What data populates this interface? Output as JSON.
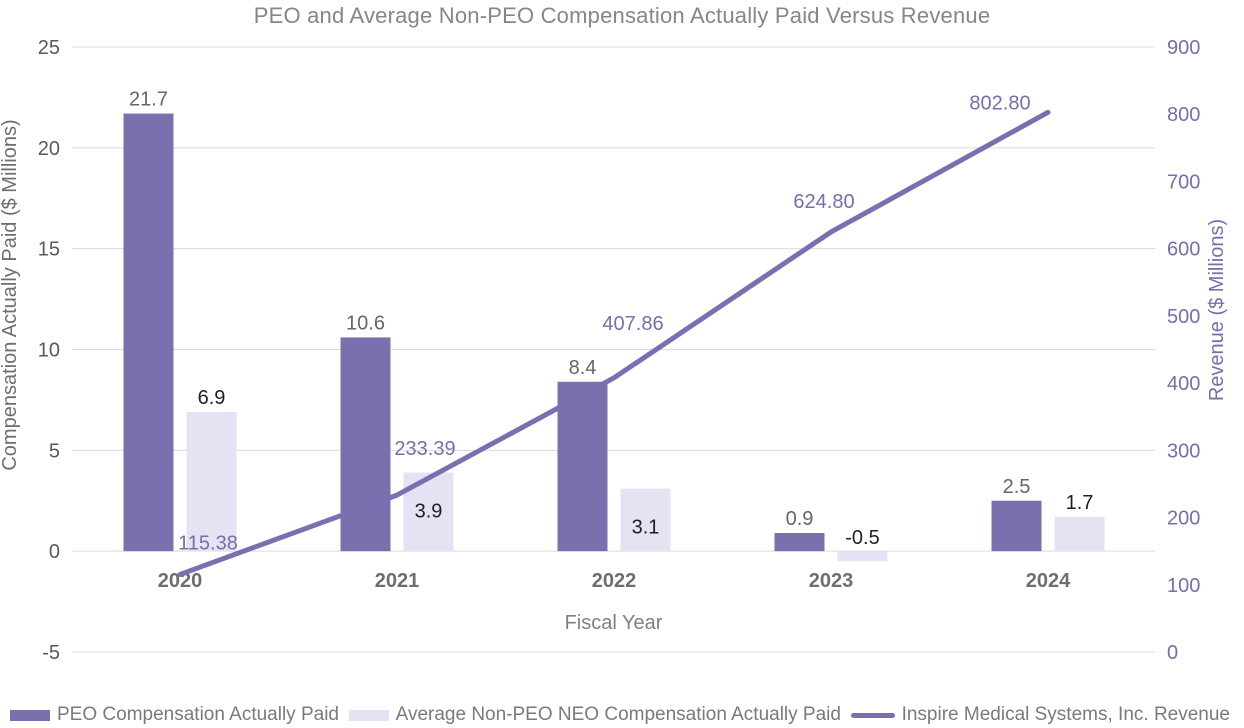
{
  "chart_data": {
    "type": "combo-bar-line",
    "title": "PEO and Average Non-PEO Compensation Actually Paid Versus Revenue",
    "xlabel": "Fiscal Year",
    "categories": [
      "2020",
      "2021",
      "2022",
      "2023",
      "2024"
    ],
    "series": [
      {
        "name": "PEO Compensation Actually Paid",
        "type": "bar",
        "axis": "left",
        "color": "#7a70ae",
        "label_color": "#666666",
        "values": [
          21.7,
          10.6,
          8.4,
          0.9,
          2.5
        ],
        "labels": [
          "21.7",
          "10.6",
          "8.4",
          "0.9",
          "2.5"
        ]
      },
      {
        "name": "Average Non-PEO NEO Compensation Actually Paid",
        "type": "bar",
        "axis": "left",
        "color": "#e4e2f3",
        "label_color": "#1f1f1f",
        "values": [
          6.9,
          3.9,
          3.1,
          -0.5,
          1.7
        ],
        "labels": [
          "6.9",
          "3.9",
          "3.1",
          "-0.5",
          "1.7"
        ]
      },
      {
        "name": "Inspire Medical Systems, Inc. Revenue",
        "type": "line",
        "axis": "right",
        "color": "#7a6fb0",
        "label_color": "#7a6cad",
        "values": [
          115.38,
          233.39,
          407.86,
          624.8,
          802.8
        ],
        "labels": [
          "115.38",
          "233.39",
          "407.86",
          "624.80",
          "802.80"
        ]
      }
    ],
    "left_axis": {
      "title": "Compensation Actually Paid ($ Millions)",
      "min": -5,
      "max": 25,
      "tick_step": 5,
      "ticks": [
        "25",
        "20",
        "15",
        "10",
        "5",
        "0",
        "-5"
      ],
      "color": "#595959"
    },
    "right_axis": {
      "title": "Revenue ($ Millions)",
      "min": 0,
      "max": 900,
      "tick_step": 100,
      "ticks": [
        "900",
        "800",
        "700",
        "600",
        "500",
        "400",
        "300",
        "200",
        "100",
        "0"
      ],
      "color": "#7a6cad"
    },
    "grid": true,
    "gridline_color": "#dcdcdc",
    "legend_position": "bottom"
  }
}
